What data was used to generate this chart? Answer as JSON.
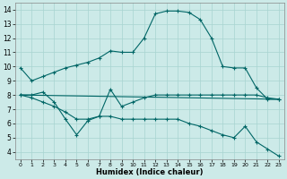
{
  "xlabel": "Humidex (Indice chaleur)",
  "background_color": "#cceae8",
  "line_color": "#006666",
  "xlim": [
    -0.5,
    23.5
  ],
  "ylim": [
    3.5,
    14.5
  ],
  "yticks": [
    4,
    5,
    6,
    7,
    8,
    9,
    10,
    11,
    12,
    13,
    14
  ],
  "xticks": [
    0,
    1,
    2,
    3,
    4,
    5,
    6,
    7,
    8,
    9,
    10,
    11,
    12,
    13,
    14,
    15,
    16,
    17,
    18,
    19,
    20,
    21,
    22,
    23
  ],
  "series": [
    {
      "x": [
        0,
        1,
        2,
        3,
        4,
        5,
        6,
        7,
        8,
        9,
        10,
        11,
        12,
        13,
        14,
        15,
        16,
        17,
        18,
        19,
        20,
        21,
        22,
        23
      ],
      "y": [
        9.9,
        9.0,
        9.3,
        9.6,
        9.9,
        10.1,
        10.3,
        10.6,
        11.1,
        11.0,
        11.0,
        12.0,
        13.7,
        13.9,
        13.9,
        13.8,
        13.3,
        12.0,
        10.0,
        9.9,
        9.9,
        8.5,
        7.7,
        7.7
      ],
      "marker": true
    },
    {
      "x": [
        0,
        1,
        2,
        3,
        4,
        5,
        6,
        7,
        8,
        9,
        10,
        11,
        12,
        13,
        14,
        15,
        16,
        17,
        18,
        19,
        20,
        21,
        22,
        23
      ],
      "y": [
        8.0,
        8.0,
        8.2,
        7.5,
        6.3,
        5.2,
        6.2,
        6.5,
        8.4,
        7.2,
        7.5,
        7.8,
        8.0,
        8.0,
        8.0,
        8.0,
        8.0,
        8.0,
        8.0,
        8.0,
        8.0,
        8.0,
        7.8,
        7.7
      ],
      "marker": true
    },
    {
      "x": [
        0,
        23
      ],
      "y": [
        8.0,
        7.7
      ],
      "marker": false
    },
    {
      "x": [
        0,
        1,
        2,
        3,
        4,
        5,
        6,
        7,
        8,
        9,
        10,
        11,
        12,
        13,
        14,
        15,
        16,
        17,
        18,
        19,
        20,
        21,
        22,
        23
      ],
      "y": [
        8.0,
        7.8,
        7.5,
        7.2,
        6.8,
        6.3,
        6.3,
        6.5,
        6.5,
        6.3,
        6.3,
        6.3,
        6.3,
        6.3,
        6.3,
        6.0,
        5.8,
        5.5,
        5.2,
        5.0,
        5.8,
        4.7,
        4.2,
        3.7
      ],
      "marker": true
    }
  ]
}
